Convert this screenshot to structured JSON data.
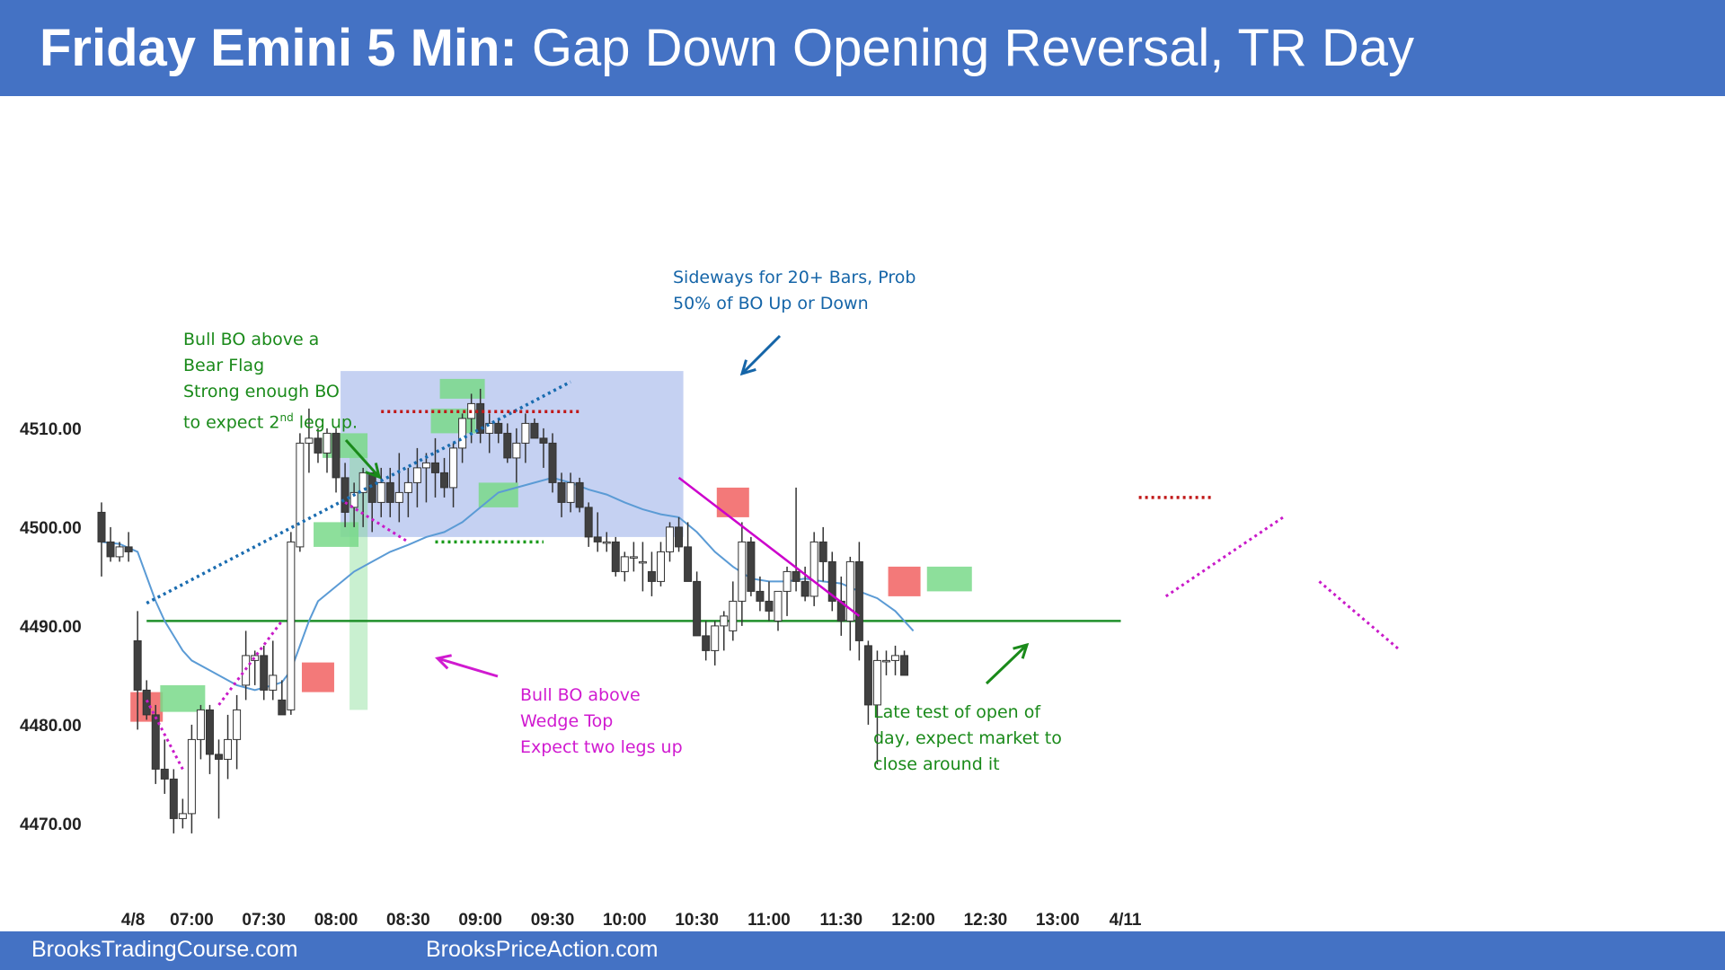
{
  "title": {
    "bold": "Friday Emini 5 Min:",
    "rest": " Gap Down Opening Reversal, TR Day"
  },
  "footer": {
    "left": "BrooksTradingCourse.com",
    "right": "BrooksPriceAction.com"
  },
  "colors": {
    "accent": "#4472c4",
    "bull_annotation": "#1a8a1a",
    "bear_annotation": "#d01ad0",
    "ema": "#5b9bd5",
    "range_box": "#9fb2ea",
    "bear_setup": "#f26a6a",
    "bull_setup": "#79d98a"
  },
  "annotations": {
    "bull_bo_bear_flag": [
      "Bull BO above a",
      "Bear Flag",
      "Strong enough BO",
      "to expect 2",
      "nd",
      " leg up."
    ],
    "sideways": [
      "Sideways for 20+ Bars, Prob",
      "50% of BO Up or Down"
    ],
    "bull_bo_wedge": [
      "Bull BO above",
      "Wedge Top",
      "Expect two legs up"
    ],
    "late_test": [
      "Late test of open of",
      "day, expect market to",
      "close around it"
    ]
  },
  "chart_data": {
    "type": "candlestick",
    "title": "",
    "xlabel": "",
    "ylabel": "",
    "ylim": [
      4463.6,
      4514.8
    ],
    "yticks": [
      "4510.00",
      "4500.00",
      "4490.00",
      "4480.00",
      "4470.00"
    ],
    "xticks": [
      "4/8",
      "07:00",
      "07:30",
      "08:00",
      "08:30",
      "09:00",
      "09:30",
      "10:00",
      "10:30",
      "11:00",
      "11:30",
      "12:00",
      "12:30",
      "13:00",
      "4/11"
    ],
    "support_line": 4490.6,
    "candles": [
      {
        "o": 4501.6,
        "h": 4502.6,
        "l": 4495.1,
        "c": 4498.6
      },
      {
        "o": 4498.6,
        "h": 4500.1,
        "l": 4496.6,
        "c": 4497.1
      },
      {
        "o": 4497.1,
        "h": 4498.6,
        "l": 4496.6,
        "c": 4498.1
      },
      {
        "o": 4498.1,
        "h": 4499.6,
        "l": 4496.6,
        "c": 4497.6
      },
      {
        "o": 4488.6,
        "h": 4491.6,
        "l": 4479.6,
        "c": 4483.6
      },
      {
        "o": 4483.6,
        "h": 4484.6,
        "l": 4480.6,
        "c": 4481.1
      },
      {
        "o": 4481.1,
        "h": 4482.1,
        "l": 4474.1,
        "c": 4475.6
      },
      {
        "o": 4475.6,
        "h": 4478.6,
        "l": 4473.1,
        "c": 4474.6
      },
      {
        "o": 4474.6,
        "h": 4475.6,
        "l": 4469.1,
        "c": 4470.6
      },
      {
        "o": 4470.6,
        "h": 4472.6,
        "l": 4469.6,
        "c": 4471.1
      },
      {
        "o": 4471.1,
        "h": 4480.1,
        "l": 4469.1,
        "c": 4478.6
      },
      {
        "o": 4478.6,
        "h": 4482.1,
        "l": 4476.6,
        "c": 4481.6
      },
      {
        "o": 4481.6,
        "h": 4482.1,
        "l": 4475.1,
        "c": 4477.1
      },
      {
        "o": 4477.1,
        "h": 4478.6,
        "l": 4470.6,
        "c": 4476.6
      },
      {
        "o": 4476.6,
        "h": 4481.1,
        "l": 4474.6,
        "c": 4478.6
      },
      {
        "o": 4478.6,
        "h": 4483.1,
        "l": 4475.6,
        "c": 4481.6
      },
      {
        "o": 4484.1,
        "h": 4489.6,
        "l": 4482.6,
        "c": 4487.1
      },
      {
        "o": 4486.6,
        "h": 4487.6,
        "l": 4484.1,
        "c": 4487.1
      },
      {
        "o": 4487.1,
        "h": 4488.1,
        "l": 4482.6,
        "c": 4483.6
      },
      {
        "o": 4483.6,
        "h": 4488.6,
        "l": 4482.6,
        "c": 4485.1
      },
      {
        "o": 4482.6,
        "h": 4484.6,
        "l": 4481.6,
        "c": 4481.1
      },
      {
        "o": 4481.6,
        "h": 4499.6,
        "l": 4481.1,
        "c": 4498.6
      },
      {
        "o": 4498.1,
        "h": 4509.6,
        "l": 4497.6,
        "c": 4508.6
      },
      {
        "o": 4508.6,
        "h": 4512.1,
        "l": 4505.6,
        "c": 4509.1
      },
      {
        "o": 4509.1,
        "h": 4510.1,
        "l": 4506.6,
        "c": 4507.6
      },
      {
        "o": 4507.6,
        "h": 4510.1,
        "l": 4505.6,
        "c": 4509.6
      },
      {
        "o": 4509.6,
        "h": 4510.1,
        "l": 4503.6,
        "c": 4505.1
      },
      {
        "o": 4505.1,
        "h": 4506.6,
        "l": 4500.1,
        "c": 4501.6
      },
      {
        "o": 4502.1,
        "h": 4504.6,
        "l": 4500.1,
        "c": 4503.6
      },
      {
        "o": 4503.6,
        "h": 4506.1,
        "l": 4500.1,
        "c": 4505.6
      },
      {
        "o": 4505.6,
        "h": 4505.6,
        "l": 4499.6,
        "c": 4502.6
      },
      {
        "o": 4502.6,
        "h": 4506.1,
        "l": 4501.1,
        "c": 4504.6
      },
      {
        "o": 4504.6,
        "h": 4506.1,
        "l": 4501.1,
        "c": 4502.6
      },
      {
        "o": 4502.6,
        "h": 4507.6,
        "l": 4500.6,
        "c": 4503.6
      },
      {
        "o": 4503.6,
        "h": 4506.1,
        "l": 4501.1,
        "c": 4504.6
      },
      {
        "o": 4504.6,
        "h": 4508.1,
        "l": 4502.1,
        "c": 4506.1
      },
      {
        "o": 4506.1,
        "h": 4507.6,
        "l": 4502.6,
        "c": 4506.6
      },
      {
        "o": 4506.6,
        "h": 4509.1,
        "l": 4503.1,
        "c": 4505.6
      },
      {
        "o": 4505.6,
        "h": 4507.1,
        "l": 4503.1,
        "c": 4504.1
      },
      {
        "o": 4504.1,
        "h": 4508.6,
        "l": 4502.1,
        "c": 4508.1
      },
      {
        "o": 4508.1,
        "h": 4511.6,
        "l": 4506.6,
        "c": 4511.1
      },
      {
        "o": 4511.1,
        "h": 4513.6,
        "l": 4508.6,
        "c": 4512.6
      },
      {
        "o": 4512.6,
        "h": 4514.1,
        "l": 4508.6,
        "c": 4509.6
      },
      {
        "o": 4509.6,
        "h": 4511.6,
        "l": 4507.6,
        "c": 4510.6
      },
      {
        "o": 4510.6,
        "h": 4511.1,
        "l": 4508.6,
        "c": 4509.6
      },
      {
        "o": 4509.6,
        "h": 4510.6,
        "l": 4506.6,
        "c": 4507.1
      },
      {
        "o": 4507.1,
        "h": 4510.1,
        "l": 4504.6,
        "c": 4508.6
      },
      {
        "o": 4508.6,
        "h": 4511.6,
        "l": 4506.6,
        "c": 4510.6
      },
      {
        "o": 4510.6,
        "h": 4511.1,
        "l": 4509.1,
        "c": 4509.1
      },
      {
        "o": 4509.1,
        "h": 4510.1,
        "l": 4506.1,
        "c": 4508.6
      },
      {
        "o": 4508.6,
        "h": 4509.6,
        "l": 4503.6,
        "c": 4504.6
      },
      {
        "o": 4504.6,
        "h": 4505.6,
        "l": 4501.1,
        "c": 4502.6
      },
      {
        "o": 4502.6,
        "h": 4505.6,
        "l": 4501.6,
        "c": 4504.6
      },
      {
        "o": 4504.6,
        "h": 4505.1,
        "l": 4501.6,
        "c": 4502.1
      },
      {
        "o": 4502.1,
        "h": 4502.6,
        "l": 4498.1,
        "c": 4499.1
      },
      {
        "o": 4499.1,
        "h": 4501.6,
        "l": 4497.6,
        "c": 4498.6
      },
      {
        "o": 4498.6,
        "h": 4499.6,
        "l": 4497.6,
        "c": 4498.6
      },
      {
        "o": 4498.6,
        "h": 4499.1,
        "l": 4495.1,
        "c": 4495.6
      },
      {
        "o": 4495.6,
        "h": 4497.6,
        "l": 4494.6,
        "c": 4497.1
      },
      {
        "o": 4497.1,
        "h": 4498.6,
        "l": 4495.6,
        "c": 4497.1
      },
      {
        "o": 4496.6,
        "h": 4498.6,
        "l": 4493.6,
        "c": 4496.6
      },
      {
        "o": 4495.6,
        "h": 4497.6,
        "l": 4493.1,
        "c": 4494.6
      },
      {
        "o": 4494.6,
        "h": 4498.6,
        "l": 4494.1,
        "c": 4497.6
      },
      {
        "o": 4497.6,
        "h": 4500.6,
        "l": 4496.6,
        "c": 4500.1
      },
      {
        "o": 4500.1,
        "h": 4501.1,
        "l": 4497.6,
        "c": 4498.1
      },
      {
        "o": 4498.1,
        "h": 4500.6,
        "l": 4494.6,
        "c": 4494.6
      },
      {
        "o": 4494.6,
        "h": 4495.6,
        "l": 4489.6,
        "c": 4489.1
      },
      {
        "o": 4489.1,
        "h": 4490.6,
        "l": 4486.6,
        "c": 4487.6
      },
      {
        "o": 4487.6,
        "h": 4490.6,
        "l": 4486.1,
        "c": 4490.1
      },
      {
        "o": 4490.1,
        "h": 4491.6,
        "l": 4487.6,
        "c": 4491.1
      },
      {
        "o": 4489.6,
        "h": 4494.6,
        "l": 4488.6,
        "c": 4492.6
      },
      {
        "o": 4492.6,
        "h": 4500.6,
        "l": 4490.1,
        "c": 4498.6
      },
      {
        "o": 4498.6,
        "h": 4499.1,
        "l": 4493.1,
        "c": 4493.6
      },
      {
        "o": 4493.6,
        "h": 4495.1,
        "l": 4491.6,
        "c": 4492.6
      },
      {
        "o": 4492.6,
        "h": 4494.6,
        "l": 4490.6,
        "c": 4491.6
      },
      {
        "o": 4490.6,
        "h": 4493.6,
        "l": 4489.6,
        "c": 4493.6
      },
      {
        "o": 4493.6,
        "h": 4496.1,
        "l": 4491.1,
        "c": 4495.6
      },
      {
        "o": 4495.6,
        "h": 4504.1,
        "l": 4493.6,
        "c": 4494.6
      },
      {
        "o": 4494.6,
        "h": 4496.1,
        "l": 4492.6,
        "c": 4493.1
      },
      {
        "o": 4493.1,
        "h": 4499.6,
        "l": 4492.1,
        "c": 4498.6
      },
      {
        "o": 4498.6,
        "h": 4500.1,
        "l": 4494.6,
        "c": 4496.6
      },
      {
        "o": 4496.6,
        "h": 4497.6,
        "l": 4491.6,
        "c": 4492.6
      },
      {
        "o": 4492.6,
        "h": 4495.1,
        "l": 4489.1,
        "c": 4490.6
      },
      {
        "o": 4490.6,
        "h": 4497.1,
        "l": 4487.6,
        "c": 4496.6
      },
      {
        "o": 4496.6,
        "h": 4498.6,
        "l": 4486.6,
        "c": 4488.6
      },
      {
        "o": 4488.1,
        "h": 4488.6,
        "l": 4480.1,
        "c": 4482.1
      },
      {
        "o": 4482.1,
        "h": 4487.6,
        "l": 4476.1,
        "c": 4486.6
      },
      {
        "o": 4486.6,
        "h": 4487.6,
        "l": 4485.1,
        "c": 4486.6
      },
      {
        "o": 4486.6,
        "h": 4488.1,
        "l": 4485.1,
        "c": 4487.1
      },
      {
        "o": 4487.1,
        "h": 4487.6,
        "l": 4485.1,
        "c": 4485.1
      }
    ],
    "ema": [
      [
        0,
        4498.6
      ],
      [
        2,
        4498.4
      ],
      [
        4,
        4497.6
      ],
      [
        5,
        4495.1
      ],
      [
        6,
        4492.6
      ],
      [
        7,
        4490.6
      ],
      [
        8,
        4489.1
      ],
      [
        9,
        4487.6
      ],
      [
        10,
        4486.6
      ],
      [
        12,
        4485.6
      ],
      [
        14,
        4484.6
      ],
      [
        15,
        4484.1
      ],
      [
        17,
        4483.6
      ],
      [
        19,
        4484.1
      ],
      [
        20,
        4484.4
      ],
      [
        21,
        4485.6
      ],
      [
        22,
        4488.1
      ],
      [
        23,
        4490.6
      ],
      [
        24,
        4492.6
      ],
      [
        26,
        4494.1
      ],
      [
        28,
        4495.6
      ],
      [
        30,
        4496.6
      ],
      [
        32,
        4497.6
      ],
      [
        34,
        4498.3
      ],
      [
        36,
        4499.1
      ],
      [
        38,
        4499.6
      ],
      [
        40,
        4500.6
      ],
      [
        42,
        4502.1
      ],
      [
        44,
        4503.6
      ],
      [
        46,
        4504.1
      ],
      [
        48,
        4504.6
      ],
      [
        50,
        4505.1
      ],
      [
        52,
        4504.6
      ],
      [
        54,
        4503.9
      ],
      [
        56,
        4503.4
      ],
      [
        58,
        4502.6
      ],
      [
        60,
        4501.9
      ],
      [
        62,
        4501.4
      ],
      [
        64,
        4501.1
      ],
      [
        66,
        4499.6
      ],
      [
        68,
        4497.6
      ],
      [
        70,
        4496.1
      ],
      [
        72,
        4494.9
      ],
      [
        74,
        4494.6
      ],
      [
        76,
        4494.6
      ],
      [
        78,
        4494.9
      ],
      [
        80,
        4494.6
      ],
      [
        82,
        4494.4
      ],
      [
        84,
        4493.6
      ],
      [
        86,
        4492.9
      ],
      [
        88,
        4491.6
      ],
      [
        90,
        4489.6
      ]
    ]
  }
}
